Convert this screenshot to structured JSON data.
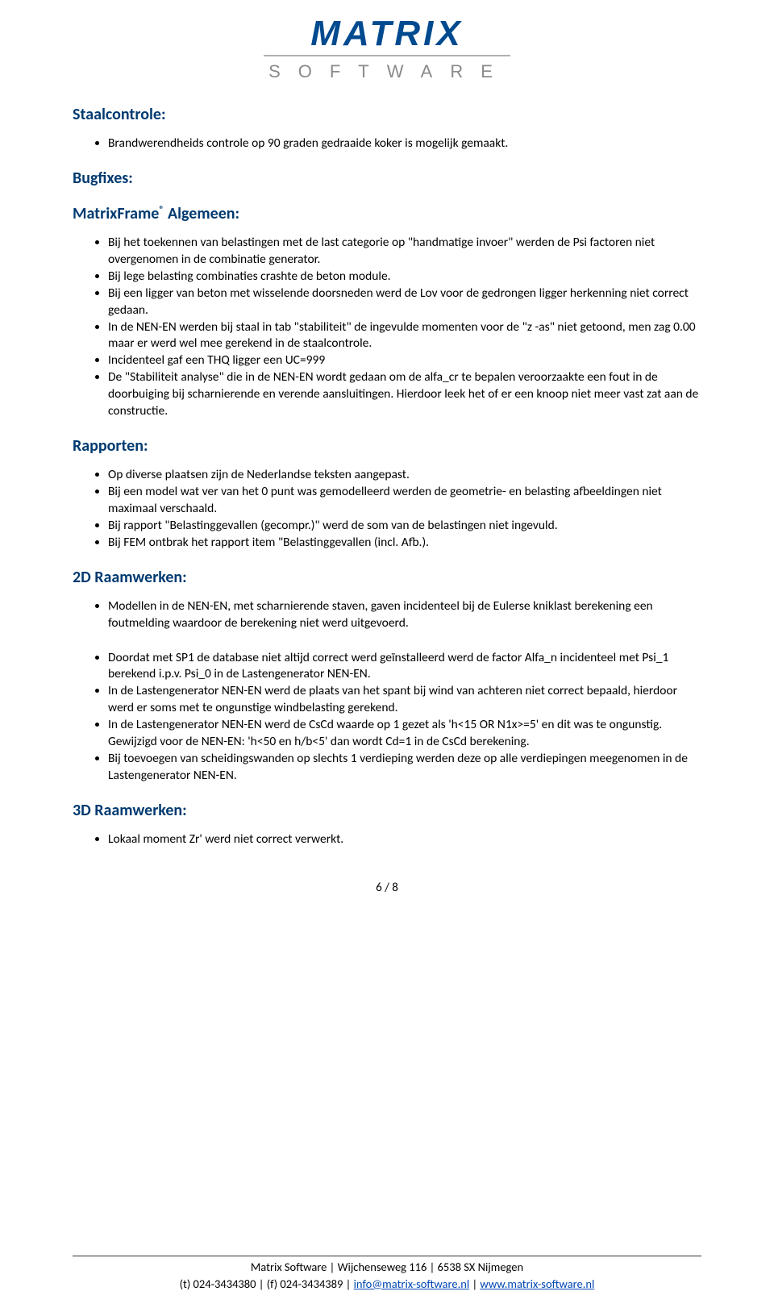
{
  "logo": {
    "main": "MATRIX",
    "sub": "SOFTWARE"
  },
  "colors": {
    "heading": "#003a70",
    "logo_blue": "#004a8f",
    "logo_grey": "#8a8a8a",
    "link": "#0047b3",
    "text": "#000000",
    "bg": "#ffffff"
  },
  "sections": [
    {
      "title": "Staalcontrole:",
      "groups": [
        {
          "items": [
            "Brandwerendheids controle op 90 graden gedraaide koker is mogelijk gemaakt."
          ]
        }
      ]
    },
    {
      "title": "Bugfixes:",
      "groups": []
    },
    {
      "title": "MatrixFrame® Algemeen:",
      "groups": [
        {
          "items": [
            "Bij het toekennen van belastingen met de last categorie op \"handmatige invoer\" werden de Psi factoren niet overgenomen in de combinatie generator.",
            "Bij lege belasting combinaties crashte de beton module.",
            "Bij een ligger van beton met wisselende doorsneden werd de Lov voor de gedrongen ligger herkenning niet correct gedaan.",
            "In de NEN-EN werden bij staal in tab \"stabiliteit\" de ingevulde momenten voor de \"z -as\" niet getoond, men zag 0.00 maar er werd wel mee gerekend in de staalcontrole.",
            "Incidenteel gaf een THQ ligger een UC=999",
            "De \"Stabiliteit analyse\" die in de NEN-EN wordt gedaan om de alfa_cr te bepalen veroorzaakte een fout in de doorbuiging bij scharnierende en verende aansluitingen. Hierdoor leek het of er een knoop niet meer vast zat aan de constructie."
          ]
        }
      ]
    },
    {
      "title": "Rapporten:",
      "groups": [
        {
          "items": [
            "Op diverse plaatsen zijn de Nederlandse teksten aangepast.",
            "Bij een model wat ver van het 0 punt was gemodelleerd werden de geometrie- en belasting afbeeldingen niet maximaal verschaald.",
            "Bij rapport \"Belastinggevallen (gecompr.)\" werd de som van de belastingen niet ingevuld.",
            "Bij FEM ontbrak het rapport item \"Belastinggevallen (incl. Afb.)."
          ]
        }
      ]
    },
    {
      "title": "2D Raamwerken:",
      "groups": [
        {
          "items": [
            "Modellen in de NEN-EN, met scharnierende staven, gaven incidenteel bij de Eulerse kniklast berekening een foutmelding waardoor de berekening niet werd uitgevoerd."
          ]
        },
        {
          "items": [
            "Doordat met SP1 de database niet altijd correct werd geïnstalleerd werd de factor Alfa_n incidenteel met Psi_1 berekend i.p.v. Psi_0 in de Lastengenerator NEN-EN.",
            "In de Lastengenerator NEN-EN werd de plaats van het spant bij wind van achteren niet correct bepaald, hierdoor werd er soms met te ongunstige windbelasting gerekend.",
            "In de Lastengenerator NEN-EN werd de CsCd waarde op 1 gezet als 'h<15 OR N1x>=5' en dit was te ongunstig. Gewijzigd voor de NEN-EN: 'h<50 en h/b<5'  dan wordt Cd=1 in de CsCd berekening.",
            "Bij toevoegen van scheidingswanden op slechts 1 verdieping werden deze op alle verdiepingen meegenomen in de Lastengenerator NEN-EN."
          ]
        }
      ]
    },
    {
      "title": "3D Raamwerken:",
      "groups": [
        {
          "items": [
            "Lokaal moment Zr' werd niet correct verwerkt."
          ]
        }
      ]
    }
  ],
  "page_number": "6 / 8",
  "footer": {
    "line1_a": "Matrix Software",
    "line1_b": "Wijchenseweg 116",
    "line1_c": "6538 SX Nijmegen",
    "line2_a": "(t) 024-3434380",
    "line2_b": "(f) 024-3434389",
    "email": "info@matrix-software.nl",
    "web": "www.matrix-software.nl",
    "sep": " | "
  }
}
